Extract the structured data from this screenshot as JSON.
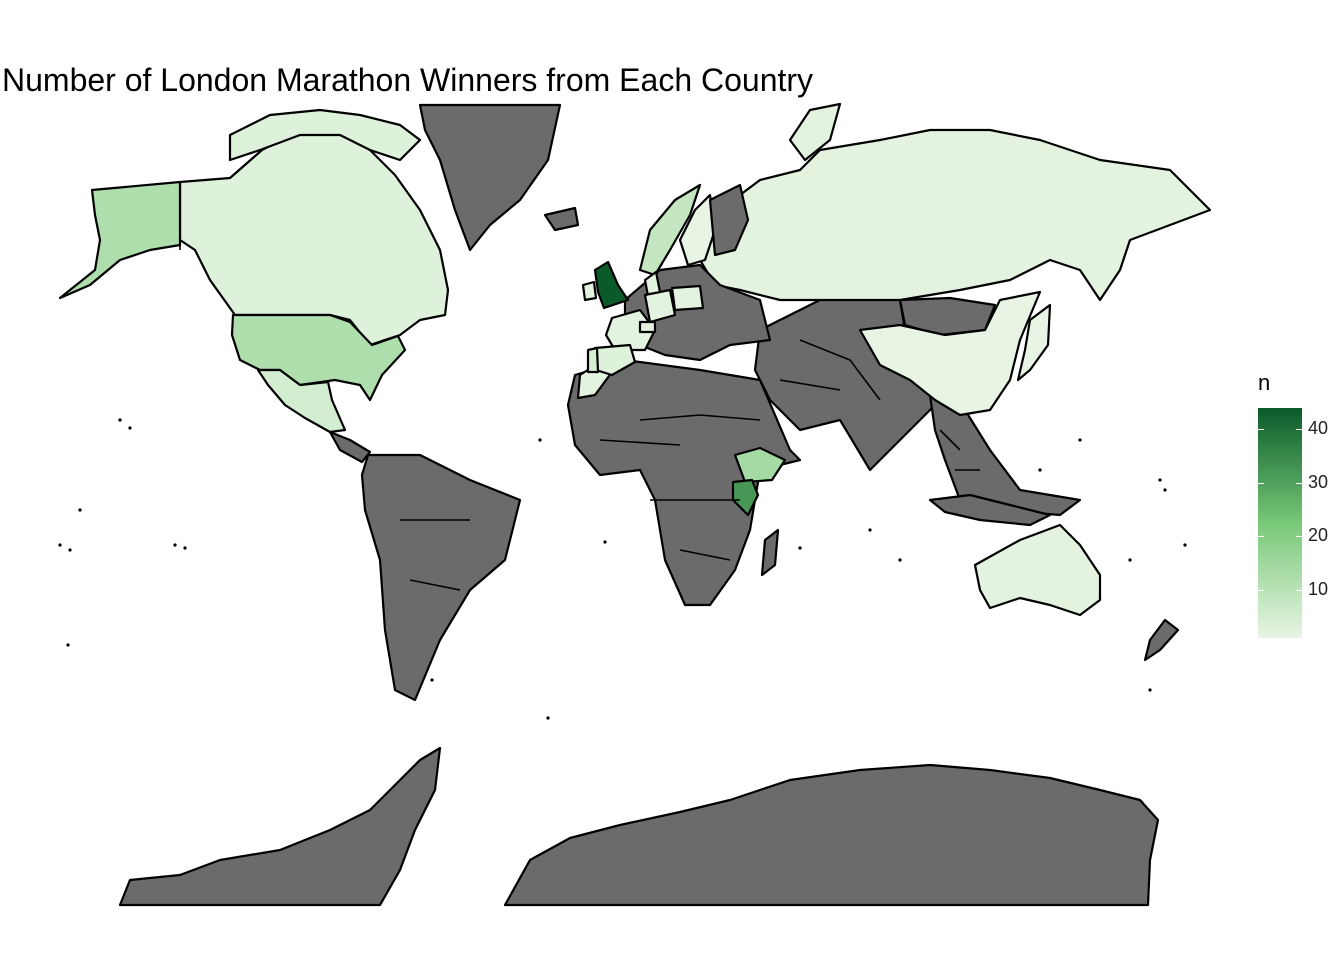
{
  "title": "Number of London Marathon Winners from Each Country",
  "legend": {
    "title": "n",
    "min": 1,
    "max": 44,
    "ticks": [
      10,
      20,
      30,
      40
    ],
    "tick_labels": [
      "10",
      "20",
      "30",
      "40"
    ],
    "low_color": "#e8f5e4",
    "high_color": "#0b5a2a"
  },
  "colors": {
    "no_data": "#6b6b6b",
    "outline": "#000000",
    "background": "#ffffff"
  },
  "chart_data": {
    "type": "choropleth",
    "variable": "n",
    "regions": [
      {
        "region": "United Kingdom",
        "value": 44
      },
      {
        "region": "Kenya",
        "value": 32
      },
      {
        "region": "Ethiopia",
        "value": 14
      },
      {
        "region": "United States",
        "value": 12
      },
      {
        "region": "Mexico",
        "value": 5
      },
      {
        "region": "Canada",
        "value": 3
      },
      {
        "region": "Russia",
        "value": 2
      },
      {
        "region": "China",
        "value": 1
      },
      {
        "region": "Australia",
        "value": 2
      },
      {
        "region": "Norway",
        "value": 8
      },
      {
        "region": "Sweden",
        "value": 1
      },
      {
        "region": "Denmark",
        "value": 2
      },
      {
        "region": "Portugal",
        "value": 4
      },
      {
        "region": "Spain",
        "value": 3
      },
      {
        "region": "France",
        "value": 2
      },
      {
        "region": "Germany",
        "value": 2
      },
      {
        "region": "Switzerland",
        "value": 2
      },
      {
        "region": "Poland",
        "value": 2
      },
      {
        "region": "Ireland",
        "value": 2
      },
      {
        "region": "Morocco",
        "value": 2
      },
      {
        "region": "Japan",
        "value": 1
      }
    ]
  }
}
